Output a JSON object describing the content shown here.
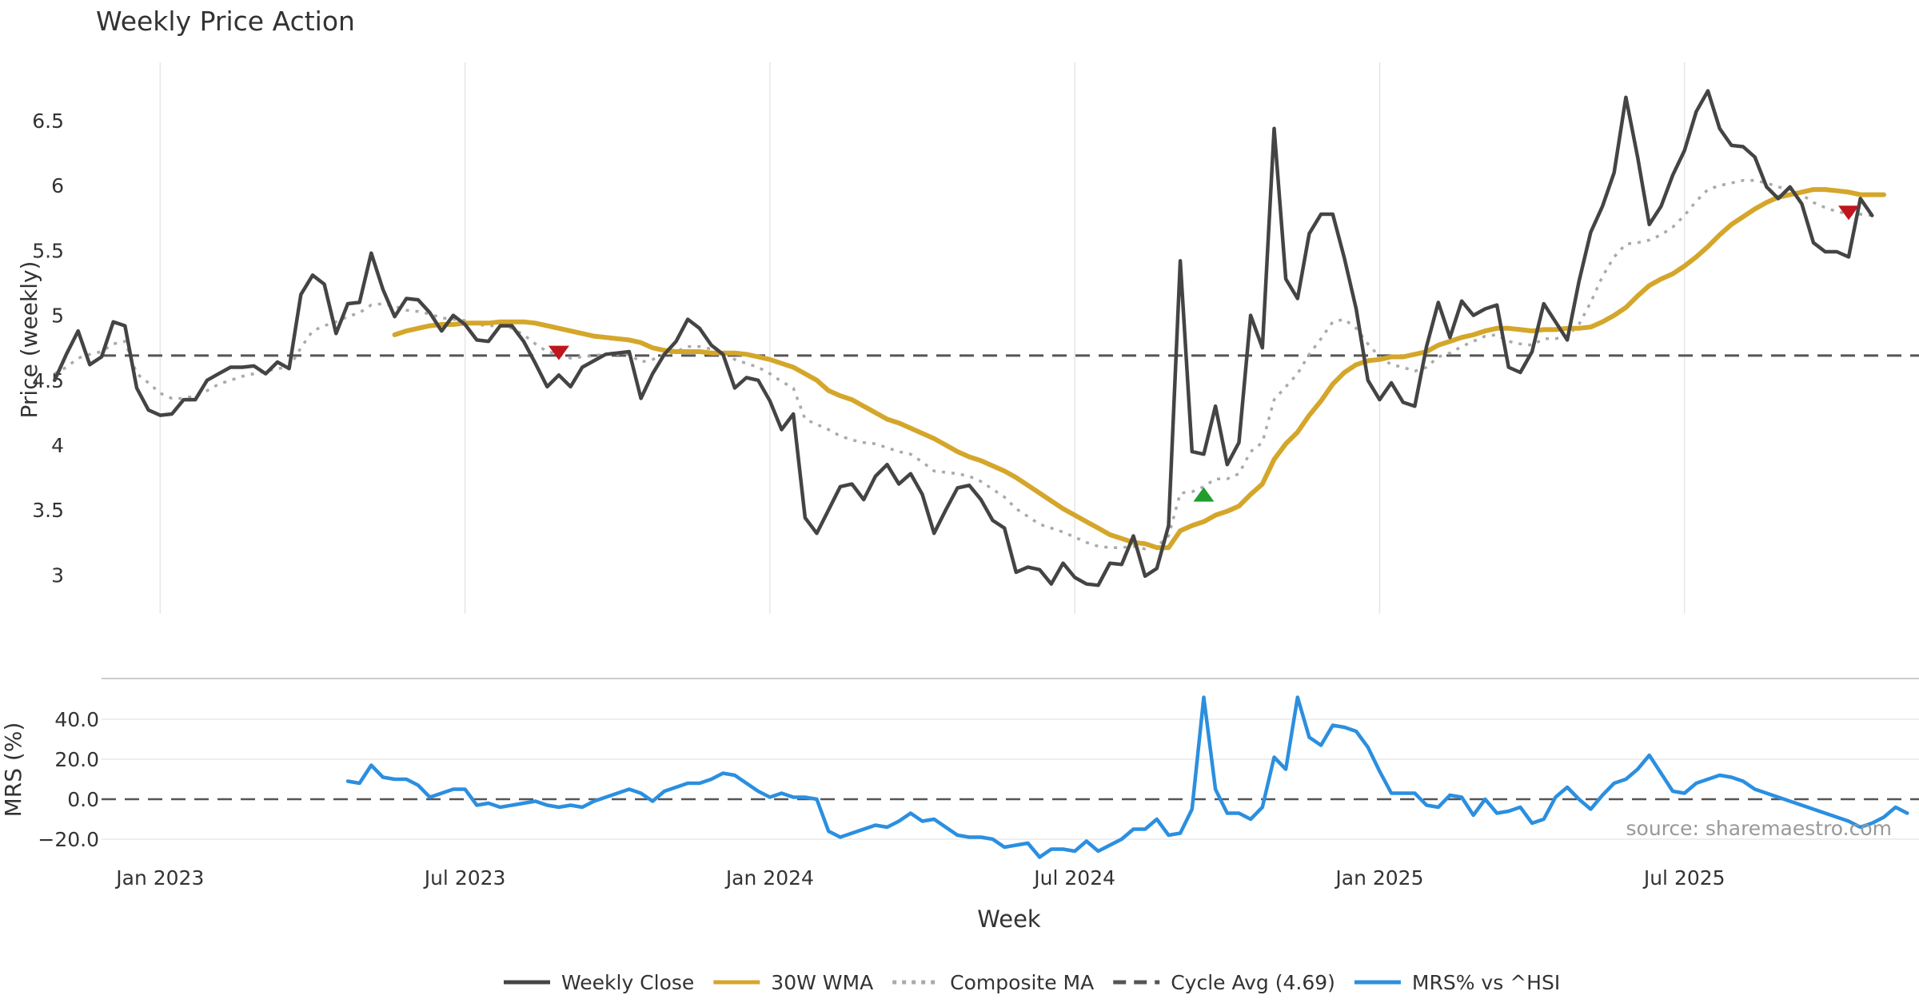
{
  "chart_data": {
    "type": "line",
    "title": "Weekly Price Action",
    "source": "source: sharemaestro.com",
    "xlabel": "Week",
    "x_ticks": [
      "Jan 2023",
      "Jul 2023",
      "Jan 2024",
      "Jul 2024",
      "Jan 2025",
      "Jul 2025"
    ],
    "week_range": [
      -5,
      150
    ],
    "tick_weeks": [
      0,
      26,
      52,
      78,
      104,
      130
    ],
    "top": {
      "ylabel": "Price (weekly)",
      "ylim": [
        2.7,
        6.95
      ],
      "y_ticks": [
        "3",
        "3.5",
        "4",
        "4.5",
        "5",
        "5.5",
        "6",
        "6.5"
      ],
      "y_tick_values": [
        3,
        3.5,
        4,
        4.5,
        5,
        5.5,
        6,
        6.5
      ],
      "grid": "vertical",
      "cycle_avg": 4.69,
      "series": [
        {
          "name": "Weekly Close",
          "color": "#444444",
          "style": "solid",
          "start_week": -9,
          "values": [
            4.5,
            4.7,
            4.88,
            4.62,
            4.68,
            4.95,
            4.92,
            4.44,
            4.27,
            4.23,
            4.24,
            4.35,
            4.35,
            4.5,
            4.55,
            4.6,
            4.6,
            4.61,
            4.55,
            4.64,
            4.59,
            5.16,
            5.31,
            5.24,
            4.86,
            5.09,
            5.1,
            5.48,
            5.2,
            4.99,
            5.13,
            5.12,
            5.02,
            4.88,
            5.0,
            4.93,
            4.81,
            4.8,
            4.92,
            4.92,
            4.8,
            4.63,
            4.45,
            4.54,
            4.45,
            4.6,
            4.65,
            4.7,
            4.71,
            4.72,
            4.36,
            4.55,
            4.7,
            4.8,
            4.97,
            4.9,
            4.77,
            4.7,
            4.44,
            4.52,
            4.5,
            4.34,
            4.12,
            4.24,
            3.44,
            3.32,
            3.5,
            3.68,
            3.7,
            3.58,
            3.76,
            3.85,
            3.7,
            3.78,
            3.62,
            3.32,
            3.5,
            3.67,
            3.69,
            3.58,
            3.42,
            3.36,
            3.02,
            3.06,
            3.04,
            2.93,
            3.09,
            2.98,
            2.93,
            2.92,
            3.09,
            3.08,
            3.3,
            2.99,
            3.05,
            3.38,
            5.42,
            3.95,
            3.93,
            4.3,
            3.85,
            4.02,
            5.0,
            4.75,
            6.44,
            5.28,
            5.13,
            5.63,
            5.78,
            5.78,
            5.44,
            5.05,
            4.5,
            4.35,
            4.48,
            4.33,
            4.3,
            4.76,
            5.1,
            4.83,
            5.11,
            5.0,
            5.05,
            5.08,
            4.6,
            4.56,
            4.72,
            5.09,
            4.95,
            4.81,
            5.26,
            5.64,
            5.84,
            6.1,
            6.68,
            6.22,
            5.7,
            5.84,
            6.08,
            6.27,
            6.57,
            6.73,
            6.44,
            6.31,
            6.3,
            6.22,
            5.99,
            5.9,
            5.99,
            5.86,
            5.56,
            5.49,
            5.49,
            5.45,
            5.9,
            5.77
          ]
        },
        {
          "name": "30W WMA",
          "color": "#d4a62a",
          "style": "solid",
          "start_week": 20,
          "values": [
            4.85,
            4.88,
            4.9,
            4.92,
            4.93,
            4.93,
            4.94,
            4.94,
            4.94,
            4.95,
            4.95,
            4.95,
            4.94,
            4.92,
            4.9,
            4.88,
            4.86,
            4.84,
            4.83,
            4.82,
            4.81,
            4.79,
            4.75,
            4.73,
            4.72,
            4.72,
            4.72,
            4.71,
            4.71,
            4.71,
            4.7,
            4.68,
            4.66,
            4.63,
            4.6,
            4.55,
            4.5,
            4.42,
            4.38,
            4.35,
            4.3,
            4.25,
            4.2,
            4.17,
            4.13,
            4.09,
            4.05,
            4.0,
            3.95,
            3.91,
            3.88,
            3.84,
            3.8,
            3.75,
            3.69,
            3.63,
            3.57,
            3.51,
            3.46,
            3.41,
            3.36,
            3.31,
            3.28,
            3.25,
            3.24,
            3.21,
            3.21,
            3.34,
            3.38,
            3.41,
            3.46,
            3.49,
            3.53,
            3.62,
            3.7,
            3.89,
            4.01,
            4.1,
            4.23,
            4.34,
            4.47,
            4.56,
            4.62,
            4.65,
            4.66,
            4.68,
            4.68,
            4.7,
            4.72,
            4.77,
            4.8,
            4.83,
            4.85,
            4.88,
            4.9,
            4.9,
            4.89,
            4.88,
            4.89,
            4.89,
            4.9,
            4.9,
            4.91,
            4.95,
            5.0,
            5.06,
            5.15,
            5.23,
            5.28,
            5.32,
            5.38,
            5.45,
            5.53,
            5.62,
            5.7,
            5.76,
            5.82,
            5.87,
            5.91,
            5.93,
            5.95,
            5.97,
            5.97,
            5.96,
            5.95,
            5.93,
            5.93,
            5.93
          ]
        },
        {
          "name": "Composite MA",
          "color": "#aaaaaa",
          "style": "dotted",
          "start_week": -9,
          "values": [
            4.55,
            4.6,
            4.67,
            4.7,
            4.72,
            4.78,
            4.8,
            4.55,
            4.48,
            4.4,
            4.36,
            4.36,
            4.38,
            4.42,
            4.47,
            4.5,
            4.53,
            4.55,
            4.57,
            4.59,
            4.6,
            4.75,
            4.88,
            4.92,
            4.95,
            4.99,
            5.02,
            5.08,
            5.09,
            5.07,
            5.04,
            5.03,
            5.01,
            4.98,
            4.97,
            4.96,
            4.93,
            4.92,
            4.92,
            4.9,
            4.85,
            4.78,
            4.72,
            4.7,
            4.67,
            4.68,
            4.69,
            4.7,
            4.7,
            4.7,
            4.64,
            4.66,
            4.7,
            4.72,
            4.76,
            4.76,
            4.74,
            4.72,
            4.66,
            4.63,
            4.6,
            4.55,
            4.49,
            4.44,
            4.2,
            4.16,
            4.12,
            4.07,
            4.04,
            4.02,
            4.01,
            3.98,
            3.95,
            3.93,
            3.87,
            3.8,
            3.79,
            3.78,
            3.76,
            3.72,
            3.66,
            3.6,
            3.51,
            3.45,
            3.39,
            3.36,
            3.33,
            3.29,
            3.25,
            3.22,
            3.21,
            3.21,
            3.22,
            3.2,
            3.22,
            3.3,
            3.63,
            3.64,
            3.68,
            3.74,
            3.74,
            3.78,
            3.95,
            4.02,
            4.35,
            4.45,
            4.55,
            4.7,
            4.82,
            4.95,
            4.97,
            4.9,
            4.78,
            4.68,
            4.62,
            4.6,
            4.57,
            4.6,
            4.68,
            4.71,
            4.76,
            4.8,
            4.84,
            4.85,
            4.8,
            4.78,
            4.77,
            4.82,
            4.82,
            4.84,
            4.93,
            5.1,
            5.3,
            5.45,
            5.55,
            5.56,
            5.58,
            5.62,
            5.68,
            5.77,
            5.88,
            5.97,
            6.0,
            6.02,
            6.04,
            6.04,
            6.02,
            5.99,
            5.97,
            5.93,
            5.87,
            5.83,
            5.8,
            5.78,
            5.78,
            5.77
          ]
        }
      ],
      "signals": [
        {
          "type": "sell",
          "week": 34,
          "price": 4.71
        },
        {
          "type": "buy",
          "week": 89,
          "price": 3.62
        },
        {
          "type": "sell",
          "week": 144,
          "price": 5.79
        }
      ]
    },
    "bottom": {
      "ylabel": "MRS (%)",
      "ylim": [
        -32,
        58
      ],
      "y_ticks": [
        "−20.0",
        "0.0",
        "20.0",
        "40.0"
      ],
      "y_tick_values": [
        -20,
        0,
        20,
        40
      ],
      "grid": "horizontal",
      "zero_line": 0,
      "series": [
        {
          "name": "MRS% vs ^HSI",
          "color": "#2b8fe0",
          "style": "solid",
          "start_week": 16,
          "values": [
            9,
            8,
            17,
            11,
            10,
            10,
            7,
            1,
            3,
            5,
            5,
            -3,
            -2,
            -4,
            -3,
            -2,
            -1,
            -3,
            -4,
            -3,
            -4,
            -1,
            1,
            3,
            5,
            3,
            -1,
            4,
            6,
            8,
            8,
            10,
            13,
            12,
            8,
            4,
            1,
            3,
            1,
            1,
            0,
            -16,
            -19,
            -17,
            -15,
            -13,
            -14,
            -11,
            -7,
            -11,
            -10,
            -14,
            -18,
            -19,
            -19,
            -20,
            -24,
            -23,
            -22,
            -29,
            -25,
            -25,
            -26,
            -21,
            -26,
            -23,
            -20,
            -15,
            -15,
            -10,
            -18,
            -17,
            -5,
            51,
            5,
            -7,
            -7,
            -10,
            -4,
            21,
            15,
            51,
            31,
            27,
            37,
            36,
            34,
            26,
            14,
            3,
            3,
            3,
            -3,
            -4,
            2,
            1,
            -8,
            0,
            -7,
            -6,
            -4,
            -12,
            -10,
            1,
            6,
            0,
            -5,
            2,
            8,
            10,
            15,
            22,
            13,
            4,
            3,
            8,
            10,
            12,
            11,
            9,
            5,
            3,
            1,
            -1,
            -3,
            -5,
            -7,
            -9,
            -11,
            -14,
            -12,
            -9,
            -4,
            -7
          ]
        }
      ]
    },
    "legend": [
      {
        "label": "Weekly Close",
        "color": "#444444",
        "style": "solid"
      },
      {
        "label": "30W WMA",
        "color": "#d4a62a",
        "style": "solid"
      },
      {
        "label": "Composite MA",
        "color": "#aaaaaa",
        "style": "dotted"
      },
      {
        "label": "Cycle Avg (4.69)",
        "color": "#555555",
        "style": "dashed"
      },
      {
        "label": "MRS% vs ^HSI",
        "color": "#2b8fe0",
        "style": "solid"
      }
    ],
    "legend_position": "bottom-center"
  }
}
